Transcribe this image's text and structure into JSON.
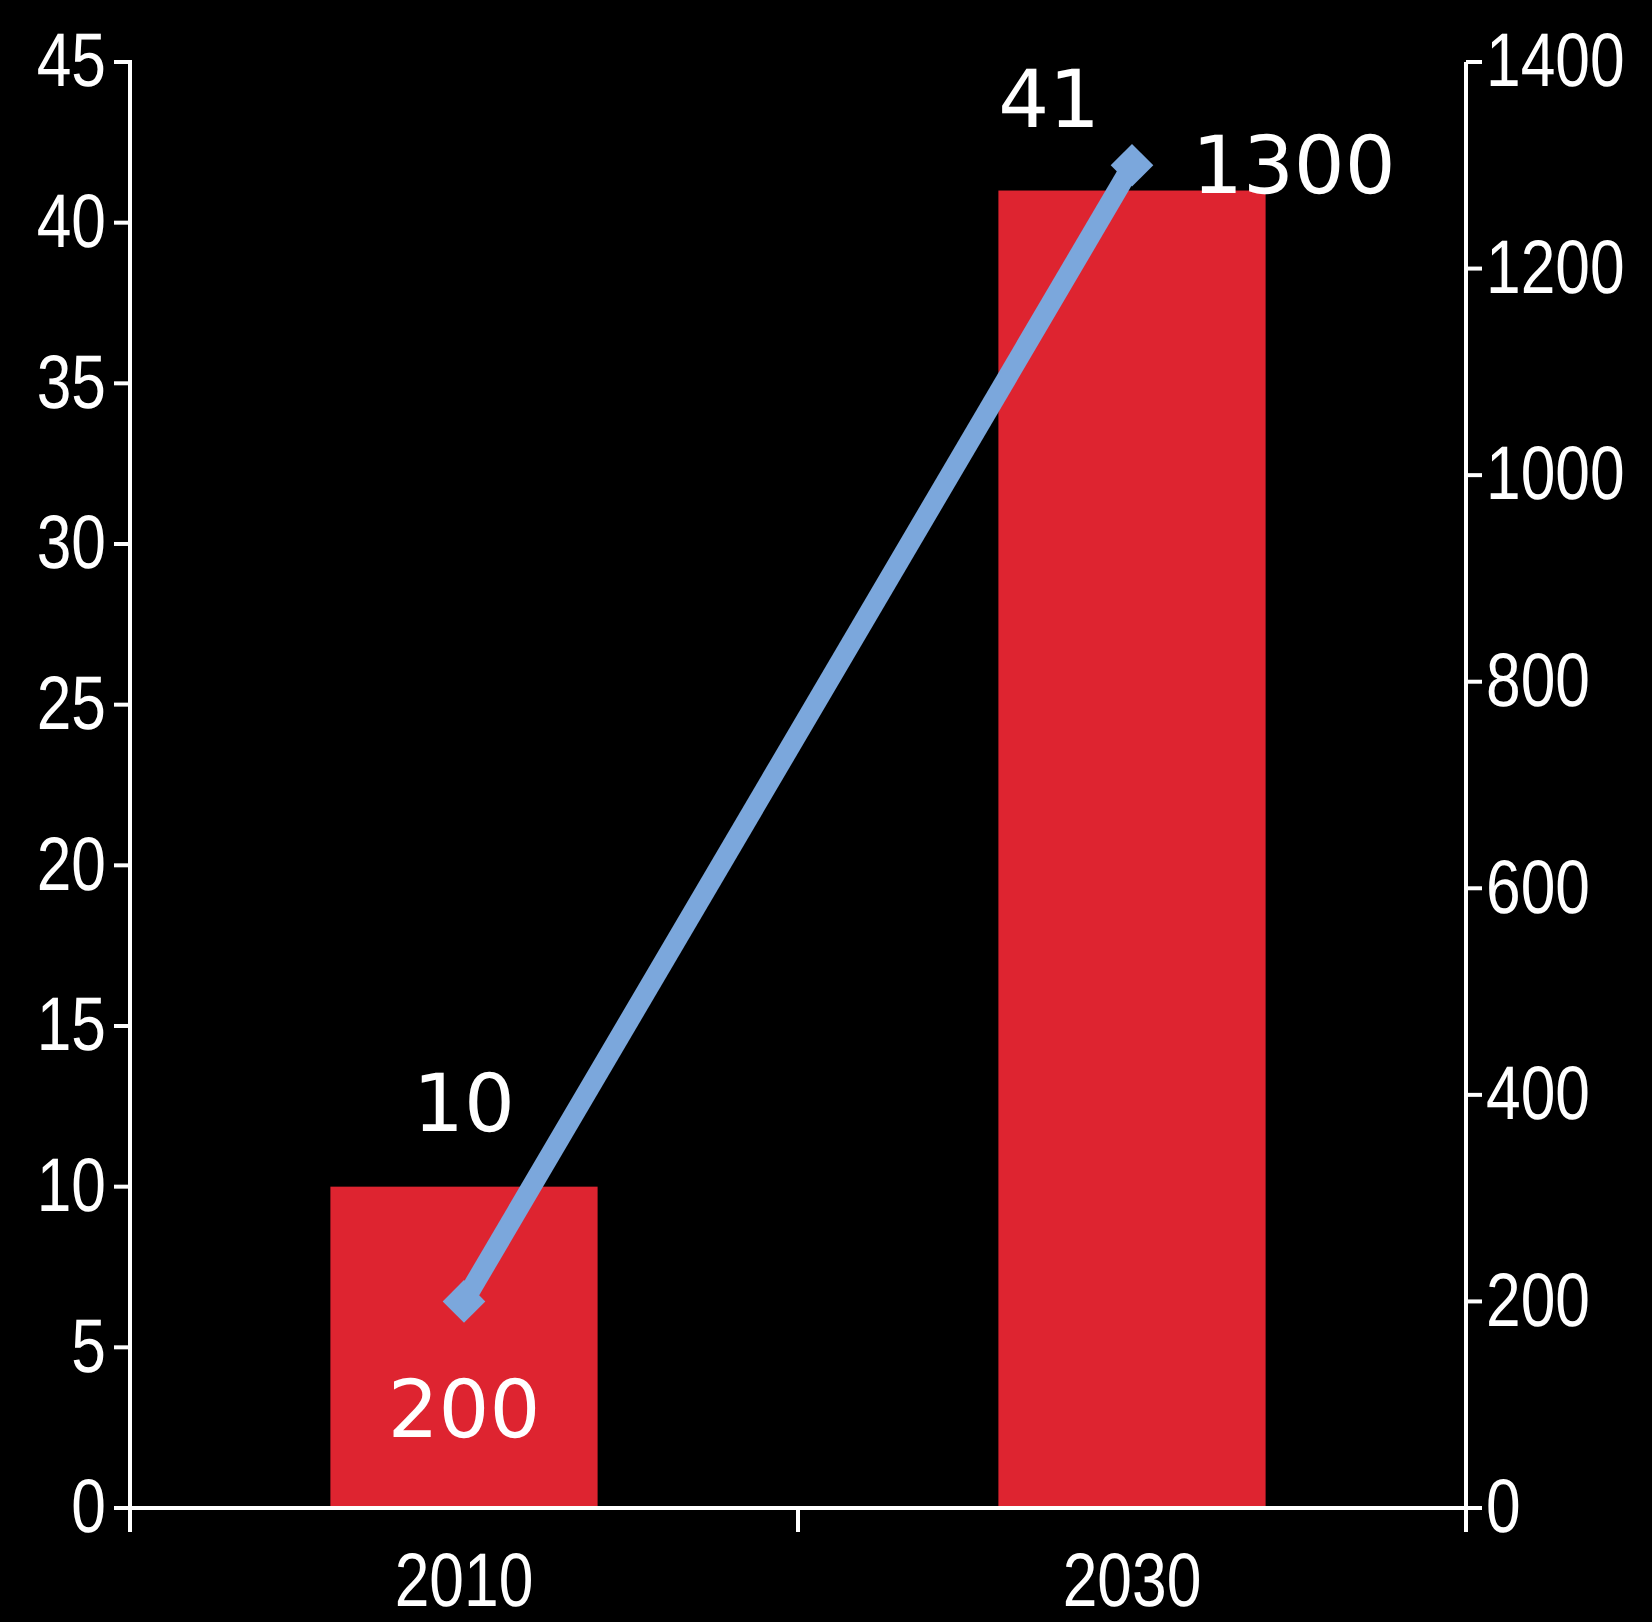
{
  "chart_data": {
    "type": "bar",
    "categories": [
      "2010",
      "2030"
    ],
    "series": [
      {
        "color": "#de2430",
        "values": [
          10,
          41
        ]
      },
      {
        "type": "line",
        "axis": "y2",
        "color": "#7ba7dc",
        "values": [
          200,
          1300
        ]
      }
    ],
    "marker": "diamond",
    "data_labels": true,
    "ylim": [
      0,
      45
    ],
    "yticks": [
      0,
      5,
      10,
      15,
      20,
      25,
      30,
      35,
      40,
      45
    ],
    "y2lim": [
      0,
      1400
    ],
    "y2ticks": [
      0,
      200,
      400,
      600,
      800,
      1000,
      1200,
      1400
    ]
  }
}
